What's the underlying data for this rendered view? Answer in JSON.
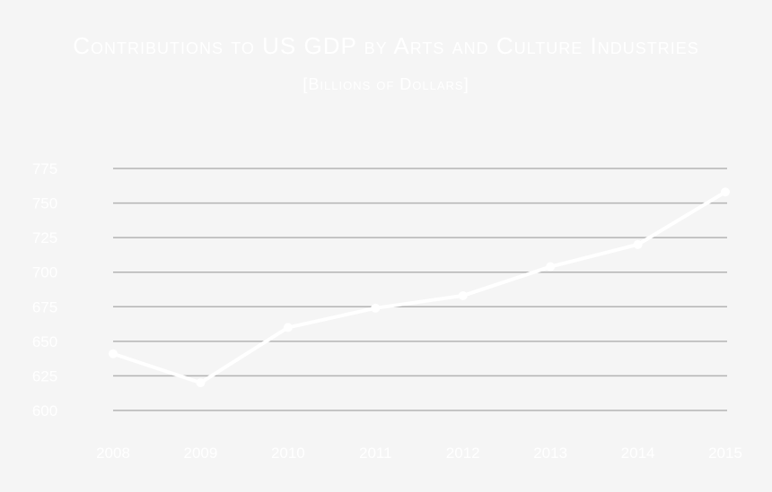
{
  "chart_data": {
    "type": "line",
    "title": "Contributions to US GDP by Arts and Culture Industries",
    "subtitle": "[Billions of Dollars]",
    "categories": [
      "2008",
      "2009",
      "2010",
      "2011",
      "2012",
      "2013",
      "2014",
      "2015"
    ],
    "values": [
      641,
      620,
      660,
      674,
      683,
      704,
      720,
      758
    ],
    "ylim": [
      600,
      775
    ],
    "yticks": [
      "775",
      "750",
      "725",
      "700",
      "675",
      "650",
      "625",
      "600"
    ],
    "grid": true,
    "colors": {
      "background": "#f5f5f5",
      "line": "#ffffff",
      "grid": "#b3b3b3",
      "text": "#ffffff"
    }
  }
}
